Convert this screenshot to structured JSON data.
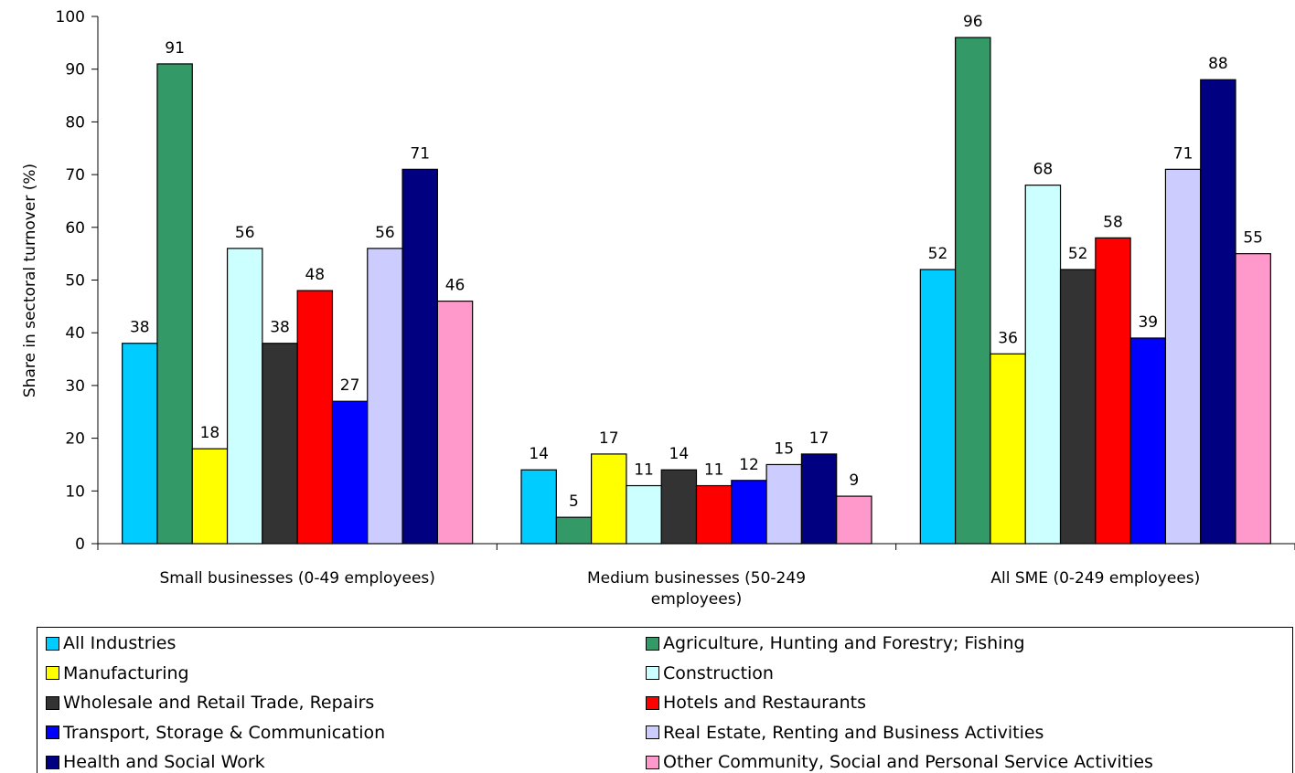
{
  "chart_data": {
    "type": "bar",
    "title": "",
    "xlabel": "",
    "ylabel": "Share in sectoral turnover (%)",
    "ylim": [
      0,
      100
    ],
    "yticks": [
      "0",
      "10",
      "20",
      "30",
      "40",
      "50",
      "60",
      "70",
      "80",
      "90",
      "100"
    ],
    "grid": false,
    "legend_position": "bottom",
    "categories": [
      [
        "Small businesses (0-49 employees)"
      ],
      [
        "Medium businesses (50-249",
        "employees)"
      ],
      [
        "All SME (0-249 employees)"
      ]
    ],
    "series": [
      {
        "name": "All Industries",
        "color": "#00CCFF",
        "values": [
          38,
          14,
          52
        ]
      },
      {
        "name": "Agriculture, Hunting and Forestry; Fishing",
        "color": "#339966",
        "values": [
          91,
          5,
          96
        ]
      },
      {
        "name": "Manufacturing",
        "color": "#FFFF00",
        "values": [
          18,
          17,
          36
        ]
      },
      {
        "name": "Construction",
        "color": "#CCFFFF",
        "values": [
          56,
          11,
          68
        ]
      },
      {
        "name": "Wholesale and Retail Trade, Repairs",
        "color": "#333333",
        "values": [
          38,
          14,
          52
        ]
      },
      {
        "name": "Hotels and Restaurants",
        "color": "#FF0000",
        "values": [
          48,
          11,
          58
        ]
      },
      {
        "name": "Transport, Storage & Communication",
        "color": "#0000FF",
        "values": [
          27,
          12,
          39
        ]
      },
      {
        "name": "Real Estate, Renting and Business Activities",
        "color": "#CCCCFF",
        "values": [
          56,
          15,
          71
        ]
      },
      {
        "name": "Health and Social Work",
        "color": "#000080",
        "values": [
          71,
          17,
          88
        ]
      },
      {
        "name": "Other Community, Social and Personal Service Activities",
        "color": "#FF99CC",
        "values": [
          46,
          9,
          55
        ]
      }
    ]
  }
}
